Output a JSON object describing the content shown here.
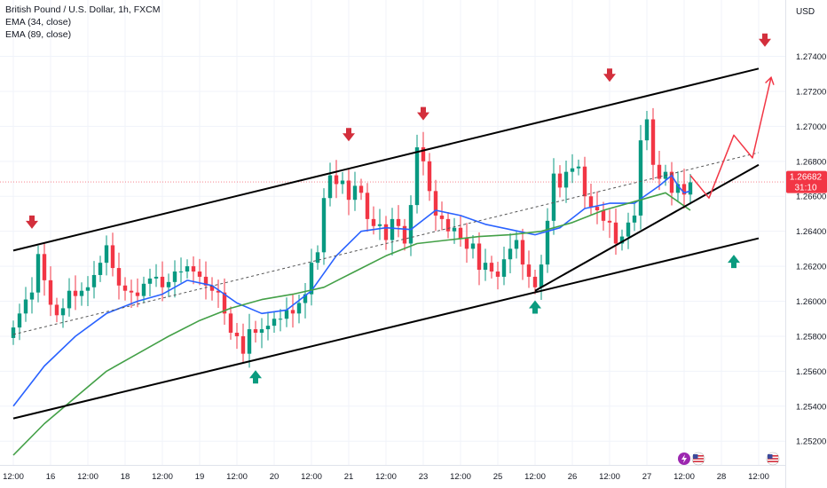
{
  "header": {
    "title": "British Pound / U.S. Dollar, 1h, FXCM",
    "indicator1": "EMA (34, close)",
    "indicator2": "EMA (89, close)",
    "currency": "USD"
  },
  "price_tag": {
    "price": "1.26682",
    "countdown": "31:10",
    "color": "#f23645"
  },
  "colors": {
    "up": "#089981",
    "down": "#f23645",
    "ema34": "#2962ff",
    "ema89": "#43a047",
    "channel": "#000000",
    "projection": "#f23645",
    "arrow_down": "#d32f3c",
    "arrow_up": "#0a9b7f"
  },
  "icons": [
    "lightning-icon",
    "us-flag-icon",
    "us-flag-icon"
  ],
  "chart_data": {
    "type": "line",
    "title": "British Pound / U.S. Dollar, 1h, FXCM",
    "y_ticks": [
      "1.27400",
      "1.27200",
      "1.27000",
      "1.26800",
      "1.26600",
      "1.26400",
      "1.26200",
      "1.26000",
      "1.25800",
      "1.25600",
      "1.25400",
      "1.25200"
    ],
    "x_ticks": [
      "12:00",
      "16",
      "12:00",
      "18",
      "12:00",
      "19",
      "12:00",
      "20",
      "12:00",
      "21",
      "12:00",
      "23",
      "12:00",
      "25",
      "12:00",
      "26",
      "12:00",
      "27",
      "12:00",
      "28",
      "12:00"
    ],
    "x_tick_index": [
      0,
      6,
      12,
      18,
      24,
      30,
      36,
      42,
      48,
      54,
      60,
      66,
      72,
      78,
      84,
      90,
      96,
      102,
      108,
      114,
      120
    ],
    "ylim": [
      1.2512,
      1.2756
    ],
    "grid": true,
    "close_series": [
      1.2585,
      1.2593,
      1.2601,
      1.2605,
      1.2627,
      1.2612,
      1.2598,
      1.2592,
      1.2596,
      1.2606,
      1.2603,
      1.2606,
      1.2608,
      1.2615,
      1.2622,
      1.2632,
      1.2619,
      1.2609,
      1.2606,
      1.2605,
      1.2603,
      1.261,
      1.2613,
      1.2614,
      1.2608,
      1.2611,
      1.2617,
      1.2617,
      1.262,
      1.2617,
      1.2614,
      1.2609,
      1.2606,
      1.2605,
      1.2593,
      1.2582,
      1.258,
      1.257,
      1.2584,
      1.2582,
      1.2584,
      1.2586,
      1.259,
      1.259,
      1.2595,
      1.2593,
      1.2599,
      1.2604,
      1.2622,
      1.2628,
      1.2659,
      1.2672,
      1.2667,
      1.2669,
      1.2658,
      1.2666,
      1.2662,
      1.2647,
      1.2643,
      1.2644,
      1.2635,
      1.2647,
      1.2643,
      1.2633,
      1.2655,
      1.2688,
      1.268,
      1.2663,
      1.2649,
      1.2647,
      1.264,
      1.2642,
      1.2636,
      1.263,
      1.2633,
      1.2618,
      1.2622,
      1.2617,
      1.2614,
      1.2624,
      1.263,
      1.2635,
      1.2621,
      1.2614,
      1.2608,
      1.2621,
      1.2646,
      1.2673,
      1.2665,
      1.2674,
      1.2676,
      1.2677,
      1.266,
      1.2654,
      1.2652,
      1.2646,
      1.2645,
      1.2633,
      1.2637,
      1.2645,
      1.2649,
      1.2692,
      1.2704,
      1.2678,
      1.267,
      1.2674,
      1.2662,
      1.2667,
      1.2661,
      1.2668
    ],
    "series": [
      {
        "name": "EMA (34, close)",
        "x": [
          0,
          5,
          10,
          15,
          20,
          24,
          28,
          32,
          36,
          40,
          44,
          48,
          52,
          56,
          60,
          64,
          68,
          72,
          76,
          80,
          84,
          88,
          92,
          96,
          100,
          104,
          106,
          107,
          108,
          109
        ],
        "values": [
          1.254,
          1.2563,
          1.258,
          1.2593,
          1.26,
          1.2604,
          1.2612,
          1.2609,
          1.2599,
          1.2593,
          1.2595,
          1.2606,
          1.2626,
          1.264,
          1.2642,
          1.2641,
          1.2652,
          1.2649,
          1.2644,
          1.2641,
          1.2638,
          1.2642,
          1.2653,
          1.2656,
          1.2656,
          1.2666,
          1.2672,
          1.2666,
          1.2662,
          1.2663
        ]
      },
      {
        "name": "EMA (89, close)",
        "x": [
          0,
          5,
          10,
          15,
          20,
          25,
          30,
          35,
          40,
          45,
          50,
          55,
          60,
          65,
          70,
          75,
          80,
          85,
          90,
          95,
          100,
          105,
          109
        ],
        "values": [
          1.2512,
          1.253,
          1.2545,
          1.256,
          1.257,
          1.258,
          1.2589,
          1.2596,
          1.2601,
          1.2604,
          1.2608,
          1.2617,
          1.2626,
          1.2633,
          1.2635,
          1.2637,
          1.2638,
          1.264,
          1.2645,
          1.2652,
          1.2657,
          1.2662,
          1.2652
        ]
      }
    ],
    "channel_lines": {
      "upper": {
        "x": [
          0,
          120
        ],
        "values": [
          1.2629,
          1.2733
        ]
      },
      "lower": {
        "x": [
          0,
          120
        ],
        "values": [
          1.2533,
          1.2636
        ]
      },
      "midline": {
        "x": [
          0,
          120
        ],
        "values": [
          1.2581,
          1.2685
        ]
      },
      "support": {
        "x": [
          84,
          120
        ],
        "values": [
          1.2606,
          1.2678
        ]
      }
    },
    "projection": {
      "x": [
        109,
        112,
        116,
        119,
        122
      ],
      "values": [
        1.2672,
        1.2659,
        1.2695,
        1.2682,
        1.2728
      ]
    },
    "down_markers": [
      {
        "x": 3,
        "y": 1.2645
      },
      {
        "x": 54,
        "y": 1.2695
      },
      {
        "x": 66,
        "y": 1.2707
      },
      {
        "x": 96,
        "y": 1.2729
      },
      {
        "x": 121,
        "y": 1.2749
      }
    ],
    "up_markers": [
      {
        "x": 39,
        "y": 1.2557
      },
      {
        "x": 84,
        "y": 1.2597
      },
      {
        "x": 116,
        "y": 1.2623
      }
    ]
  }
}
